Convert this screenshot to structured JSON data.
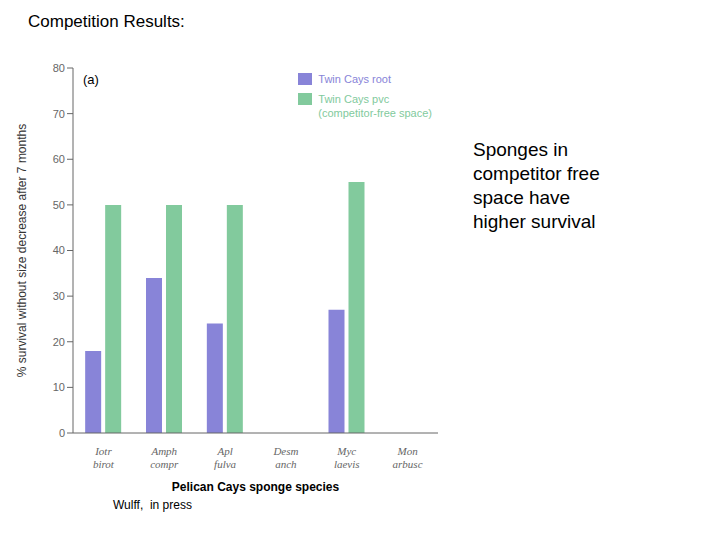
{
  "chart_data": {
    "type": "bar",
    "title": "Competition Results:",
    "subtitle": "(a)",
    "annotations": [
      "Sponges in\ncompetitor free\nspace have\nhigher survival",
      "Wulff,  in press"
    ],
    "xlabel": "Pelican Cays sponge species",
    "ylabel": "% survival without size decrease after 7 months",
    "categories": [
      "Iotr\nbirot",
      "Amph\ncompr",
      "Apl\nfulva",
      "Desm\nanch",
      "Myc\nlaevis",
      "Mon\narbusc"
    ],
    "series": [
      {
        "name": "Twin Cays root",
        "color": "#8884d8",
        "values": [
          18,
          34,
          24,
          0,
          27,
          0
        ]
      },
      {
        "name": "Twin Cays pvc\n(competitor-free space)",
        "color": "#82ca9d",
        "values": [
          50,
          50,
          50,
          0,
          55,
          0
        ]
      }
    ],
    "ylim": [
      0,
      80
    ],
    "yticks": [
      0,
      10,
      20,
      30,
      40,
      50,
      60,
      70,
      80
    ],
    "grid": false,
    "legend": "upper right"
  }
}
